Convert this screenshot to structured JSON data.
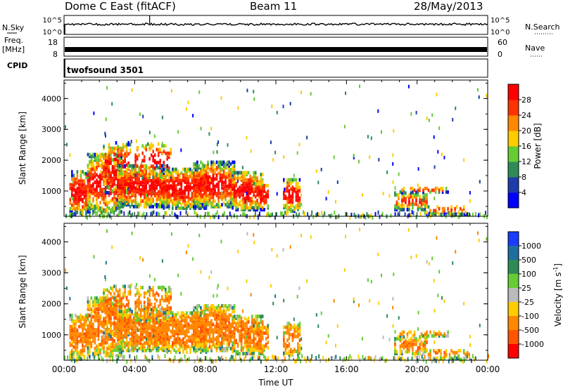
{
  "header": {
    "station": "Dome C East (fitACF)",
    "beam": "Beam 11",
    "date": "28/May/2013"
  },
  "panel_labels": {
    "nsky": "N.Sky",
    "nsearch": "N.Search",
    "freq": "Freq.",
    "freq_unit": "[MHz]",
    "nave": "Nave",
    "cpid": "CPID",
    "cpid_value": "twofsound 3501"
  },
  "chart_data": [
    {
      "type": "line",
      "name": "noise",
      "yticks_left": [
        "10^5",
        "10^0"
      ],
      "yticks_right": [
        "10^5",
        "10^0"
      ],
      "trace": "near-constant noise level with small spikes; large spike near 04:50"
    },
    {
      "type": "line",
      "name": "frequency",
      "yticks_left": [
        "18",
        "8"
      ],
      "yticks_right": [
        "60",
        "0"
      ],
      "trace": "dense band, frequency alternating ~10-12 MHz"
    },
    {
      "type": "heatmap",
      "name": "power",
      "ylabel": "Slant Range [km]",
      "yticks": [
        "1000",
        "2000",
        "3000",
        "4000"
      ],
      "ylim": [
        180,
        4600
      ],
      "xticks": [
        "00:00",
        "04:00",
        "08:00",
        "12:00",
        "16:00",
        "20:00",
        "00:00"
      ],
      "xlim": [
        0,
        24
      ],
      "colorbar": {
        "label": "Power [dB]",
        "ticks": [
          "4",
          "8",
          "12",
          "16",
          "20",
          "24",
          "28"
        ],
        "colors": [
          "#0000ff",
          "#1e3caa",
          "#2e8b57",
          "#66cc33",
          "#ffcc00",
          "#ff8800",
          "#ff3300",
          "#ff0000"
        ]
      }
    },
    {
      "type": "heatmap",
      "name": "velocity",
      "ylabel": "Slant Range [km]",
      "yticks": [
        "1000",
        "2000",
        "3000",
        "4000"
      ],
      "ylim": [
        180,
        4600
      ],
      "xticks": [
        "00:00",
        "04:00",
        "08:00",
        "12:00",
        "16:00",
        "20:00",
        "00:00"
      ],
      "xlabel": "Time UT",
      "xlim": [
        0,
        24
      ],
      "colorbar": {
        "label": "Velocity",
        "unit": "[m s",
        "unit_exp": "-1",
        "unit_close": "]",
        "ticks": [
          "1000",
          "500",
          "100",
          "25",
          "-25",
          "-100",
          "-500",
          "-1000"
        ],
        "colors": [
          "#1a3cff",
          "#1e6fa0",
          "#2e8b57",
          "#66cc33",
          "#bbbbbb",
          "#ffcc00",
          "#ff8800",
          "#ff5500",
          "#ff0000"
        ]
      }
    }
  ]
}
